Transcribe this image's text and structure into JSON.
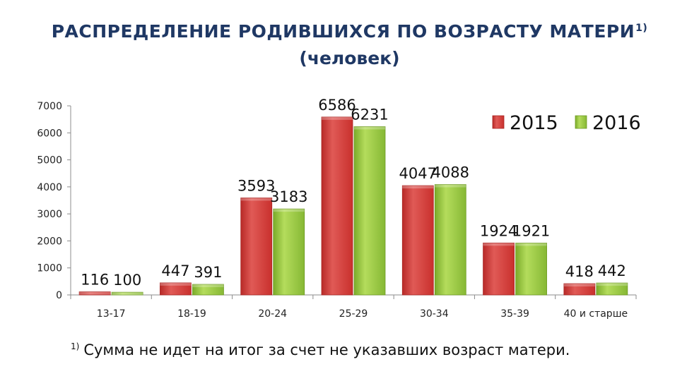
{
  "title": {
    "main": "РАСПРЕДЕЛЕНИЕ РОДИВШИХСЯ ПО ВОЗРАСТУ МАТЕРИ",
    "marker": "1)",
    "subtitle": "(человек)"
  },
  "footnote": {
    "marker": "1)",
    "text": "Сумма не идет на итог  за счет не указавших возраст матери."
  },
  "chart_data": {
    "type": "bar",
    "categories": [
      "13-17",
      "18-19",
      "20-24",
      "25-29",
      "30-34",
      "35-39",
      "40 и старше"
    ],
    "series": [
      {
        "name": "2015",
        "color": "#d23c3a",
        "values": [
          116,
          447,
          3593,
          6586,
          4047,
          1924,
          418
        ]
      },
      {
        "name": "2016",
        "color": "#8fc13a",
        "values": [
          100,
          391,
          3183,
          6231,
          4088,
          1921,
          442
        ]
      }
    ],
    "yticks": [
      0,
      1000,
      2000,
      3000,
      4000,
      5000,
      6000,
      7000
    ],
    "ylim": [
      0,
      7000
    ],
    "legend_position": "top-right",
    "grid": false
  }
}
